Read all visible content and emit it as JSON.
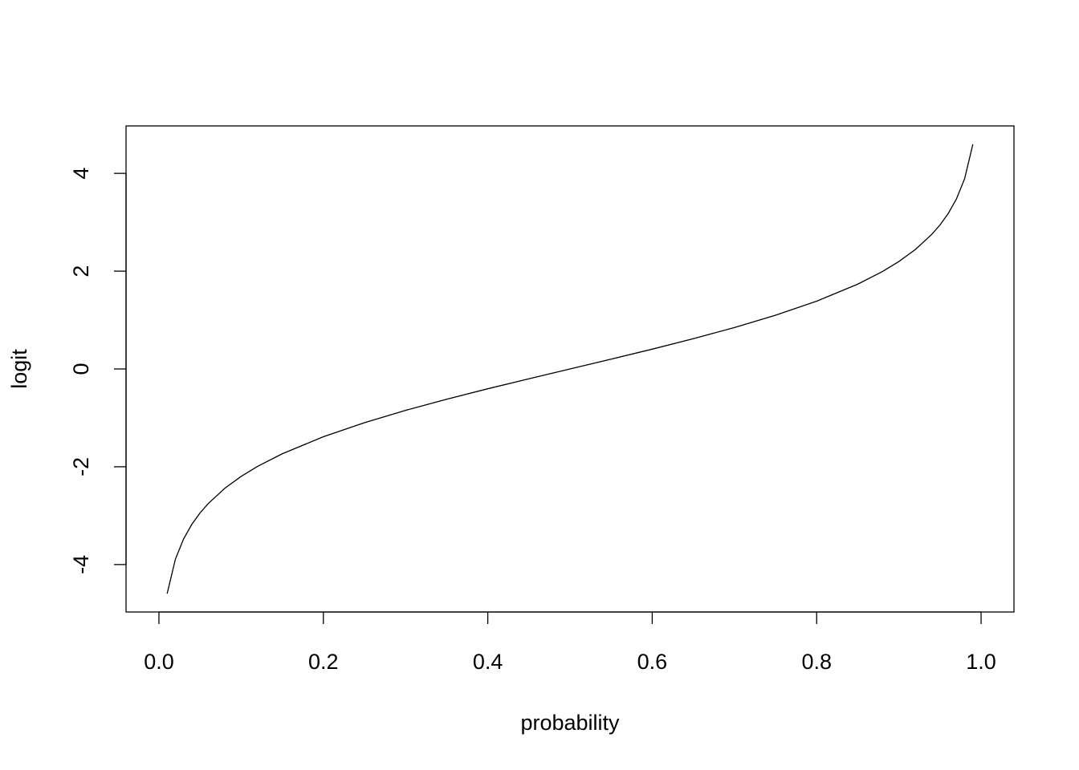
{
  "chart_data": {
    "type": "line",
    "x_label": "probability",
    "y_label": "logit",
    "x": [
      0.01,
      0.02,
      0.03,
      0.04,
      0.05,
      0.06,
      0.08,
      0.1,
      0.12,
      0.15,
      0.2,
      0.25,
      0.3,
      0.35,
      0.4,
      0.45,
      0.5,
      0.55,
      0.6,
      0.65,
      0.7,
      0.75,
      0.8,
      0.85,
      0.88,
      0.9,
      0.92,
      0.94,
      0.95,
      0.96,
      0.97,
      0.98,
      0.99
    ],
    "values": [
      -4.595,
      -3.892,
      -3.476,
      -3.178,
      -2.944,
      -2.752,
      -2.442,
      -2.197,
      -1.992,
      -1.735,
      -1.386,
      -1.099,
      -0.847,
      -0.619,
      -0.405,
      -0.201,
      0,
      0.201,
      0.405,
      0.619,
      0.847,
      1.099,
      1.386,
      1.735,
      1.992,
      2.197,
      2.442,
      2.752,
      2.944,
      3.178,
      3.476,
      3.892,
      4.595
    ],
    "color": "#000000",
    "xlim": [
      -0.04,
      1.04
    ],
    "ylim": [
      -4.97,
      4.97
    ],
    "xticks": [
      {
        "value": 0,
        "label": "0.0"
      },
      {
        "value": 0.2,
        "label": "0.2"
      },
      {
        "value": 0.4,
        "label": "0.4"
      },
      {
        "value": 0.6,
        "label": "0.6"
      },
      {
        "value": 0.8,
        "label": "0.8"
      },
      {
        "value": 1,
        "label": "1.0"
      }
    ],
    "yticks": [
      -4,
      -2,
      0,
      2,
      4
    ]
  }
}
